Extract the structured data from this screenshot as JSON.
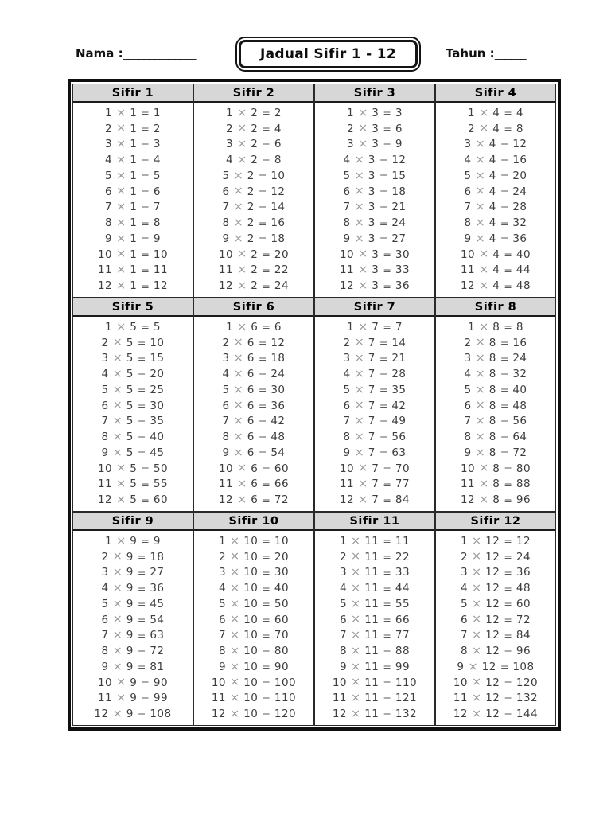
{
  "header": {
    "nama_label": "Nama :",
    "nama_line": "______________",
    "title": "Jadual Sifir 1 - 12",
    "tahun_label": "Tahun :",
    "tahun_line": "______"
  },
  "symbols": {
    "times": "×",
    "equals": "="
  },
  "colors": {
    "page_background": "#ffffff",
    "section_header_background": "#d7d7d7",
    "table_border": "#0f0f0f",
    "equation_text": "#3e3e3e",
    "times_symbol": "#9b9b9b"
  },
  "tables": [
    {
      "title": "Sifir 1",
      "base": 1,
      "multipliers": [
        1,
        2,
        3,
        4,
        5,
        6,
        7,
        8,
        9,
        10,
        11,
        12
      ],
      "results": [
        1,
        2,
        3,
        4,
        5,
        6,
        7,
        8,
        9,
        10,
        11,
        12
      ]
    },
    {
      "title": "Sifir 2",
      "base": 2,
      "multipliers": [
        1,
        2,
        3,
        4,
        5,
        6,
        7,
        8,
        9,
        10,
        11,
        12
      ],
      "results": [
        2,
        4,
        6,
        8,
        10,
        12,
        14,
        16,
        18,
        20,
        22,
        24
      ]
    },
    {
      "title": "Sifir 3",
      "base": 3,
      "multipliers": [
        1,
        2,
        3,
        4,
        5,
        6,
        7,
        8,
        9,
        10,
        11,
        12
      ],
      "results": [
        3,
        6,
        9,
        12,
        15,
        18,
        21,
        24,
        27,
        30,
        33,
        36
      ]
    },
    {
      "title": "Sifir 4",
      "base": 4,
      "multipliers": [
        1,
        2,
        3,
        4,
        5,
        6,
        7,
        8,
        9,
        10,
        11,
        12
      ],
      "results": [
        4,
        8,
        12,
        16,
        20,
        24,
        28,
        32,
        36,
        40,
        44,
        48
      ]
    },
    {
      "title": "Sifir 5",
      "base": 5,
      "multipliers": [
        1,
        2,
        3,
        4,
        5,
        6,
        7,
        8,
        9,
        10,
        11,
        12
      ],
      "results": [
        5,
        10,
        15,
        20,
        25,
        30,
        35,
        40,
        45,
        50,
        55,
        60
      ]
    },
    {
      "title": "Sifir 6",
      "base": 6,
      "multipliers": [
        1,
        2,
        3,
        4,
        5,
        6,
        7,
        8,
        9,
        10,
        11,
        12
      ],
      "results": [
        6,
        12,
        18,
        24,
        30,
        36,
        42,
        48,
        54,
        60,
        66,
        72
      ]
    },
    {
      "title": "Sifir 7",
      "base": 7,
      "multipliers": [
        1,
        2,
        3,
        4,
        5,
        6,
        7,
        8,
        9,
        10,
        11,
        12
      ],
      "results": [
        7,
        14,
        21,
        28,
        35,
        42,
        49,
        56,
        63,
        70,
        77,
        84
      ]
    },
    {
      "title": "Sifir 8",
      "base": 8,
      "multipliers": [
        1,
        2,
        3,
        4,
        5,
        6,
        7,
        8,
        9,
        10,
        11,
        12
      ],
      "results": [
        8,
        16,
        24,
        32,
        40,
        48,
        56,
        64,
        72,
        80,
        88,
        96
      ]
    },
    {
      "title": "Sifir 9",
      "base": 9,
      "multipliers": [
        1,
        2,
        3,
        4,
        5,
        6,
        7,
        8,
        9,
        10,
        11,
        12
      ],
      "results": [
        9,
        18,
        27,
        36,
        45,
        54,
        63,
        72,
        81,
        90,
        99,
        108
      ]
    },
    {
      "title": "Sifir 10",
      "base": 10,
      "multipliers": [
        1,
        2,
        3,
        4,
        5,
        6,
        7,
        8,
        9,
        10,
        11,
        12
      ],
      "results": [
        10,
        20,
        30,
        40,
        50,
        60,
        70,
        80,
        90,
        100,
        110,
        120
      ]
    },
    {
      "title": "Sifir 11",
      "base": 11,
      "multipliers": [
        1,
        2,
        3,
        4,
        5,
        6,
        7,
        8,
        9,
        10,
        11,
        12
      ],
      "results": [
        11,
        22,
        33,
        44,
        55,
        66,
        77,
        88,
        99,
        110,
        121,
        132
      ]
    },
    {
      "title": "Sifir 12",
      "base": 12,
      "multipliers": [
        1,
        2,
        3,
        4,
        5,
        6,
        7,
        8,
        9,
        10,
        11,
        12
      ],
      "results": [
        12,
        24,
        36,
        48,
        60,
        72,
        84,
        96,
        108,
        120,
        132,
        144
      ]
    }
  ]
}
